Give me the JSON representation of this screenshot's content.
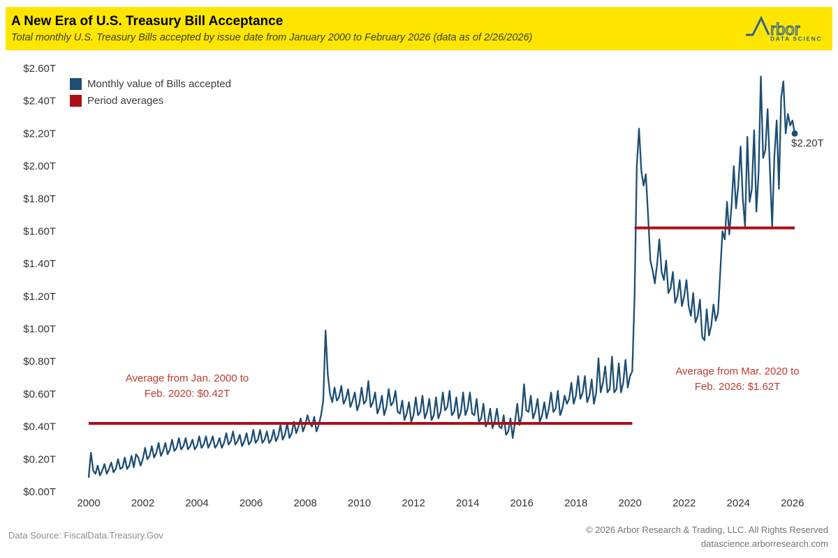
{
  "header": {
    "title": "A New Era of U.S. Treasury Bill Acceptance",
    "subtitle": "Total monthly U.S. Treasury Bills accepted by issue date from January 2000 to February 2026 (data as of 2/26/2026)",
    "background_color": "#FFE600",
    "logo": {
      "brand_suffix": "rbor",
      "tagline": "DATA SCIENCE",
      "color": "#33638F"
    }
  },
  "legend": {
    "items": [
      {
        "label": "Monthly value of Bills accepted",
        "color": "#1D4E74"
      },
      {
        "label": "Period averages",
        "color": "#AC1018"
      }
    ]
  },
  "annotations": {
    "left": {
      "line1": "Average from Jan. 2000 to",
      "line2": "Feb. 2020: $0.42T",
      "color": "#C0392B"
    },
    "right": {
      "line1": "Average from Mar. 2020 to",
      "line2": "Feb. 2026: $1.62T",
      "color": "#C0392B"
    },
    "end_point_label": "$2.20T"
  },
  "footer": {
    "source": "Data Source: FiscalData.Treasury.Gov",
    "copyright": "© 2026 Arbor Research & Trading, LLC. All Rights Reserved",
    "website": "datascience.arborresearch.com"
  },
  "chart_data": {
    "type": "line",
    "title": "A New Era of U.S. Treasury Bill Acceptance",
    "unit": "trillions of USD",
    "x_start": "2000-01",
    "x_end": "2026-02",
    "ylim": [
      0,
      2.6
    ],
    "grid": false,
    "legend_position": "top-left",
    "y_tick_labels": [
      "$0.00T",
      "$0.20T",
      "$0.40T",
      "$0.60T",
      "$0.80T",
      "$1.00T",
      "$1.20T",
      "$1.40T",
      "$1.60T",
      "$1.80T",
      "$2.00T",
      "$2.20T",
      "$2.40T",
      "$2.60T"
    ],
    "x_tick_labels": [
      "2000",
      "2002",
      "2004",
      "2006",
      "2008",
      "2010",
      "2012",
      "2014",
      "2016",
      "2018",
      "2020",
      "2022",
      "2024",
      "2026"
    ],
    "series": [
      {
        "name": "Monthly value of Bills accepted",
        "color": "#1D4E74",
        "monthly_values_trillions": [
          0.09,
          0.24,
          0.13,
          0.11,
          0.16,
          0.1,
          0.13,
          0.17,
          0.11,
          0.14,
          0.18,
          0.12,
          0.14,
          0.2,
          0.14,
          0.15,
          0.21,
          0.14,
          0.16,
          0.22,
          0.15,
          0.23,
          0.21,
          0.16,
          0.2,
          0.27,
          0.2,
          0.22,
          0.28,
          0.21,
          0.24,
          0.3,
          0.22,
          0.25,
          0.3,
          0.23,
          0.26,
          0.32,
          0.25,
          0.27,
          0.33,
          0.26,
          0.28,
          0.33,
          0.26,
          0.28,
          0.32,
          0.26,
          0.28,
          0.34,
          0.27,
          0.29,
          0.34,
          0.27,
          0.3,
          0.34,
          0.27,
          0.29,
          0.33,
          0.27,
          0.3,
          0.36,
          0.29,
          0.31,
          0.37,
          0.29,
          0.31,
          0.35,
          0.28,
          0.31,
          0.36,
          0.29,
          0.31,
          0.38,
          0.3,
          0.32,
          0.38,
          0.3,
          0.32,
          0.37,
          0.3,
          0.32,
          0.38,
          0.31,
          0.34,
          0.41,
          0.32,
          0.35,
          0.42,
          0.33,
          0.36,
          0.43,
          0.36,
          0.4,
          0.45,
          0.37,
          0.41,
          0.47,
          0.42,
          0.4,
          0.46,
          0.37,
          0.41,
          0.47,
          0.56,
          0.99,
          0.72,
          0.6,
          0.55,
          0.64,
          0.56,
          0.58,
          0.65,
          0.54,
          0.57,
          0.63,
          0.52,
          0.56,
          0.61,
          0.5,
          0.54,
          0.64,
          0.54,
          0.56,
          0.68,
          0.52,
          0.55,
          0.61,
          0.48,
          0.52,
          0.59,
          0.47,
          0.52,
          0.63,
          0.53,
          0.55,
          0.62,
          0.49,
          0.48,
          0.56,
          0.44,
          0.48,
          0.55,
          0.43,
          0.47,
          0.58,
          0.47,
          0.49,
          0.59,
          0.45,
          0.49,
          0.57,
          0.44,
          0.47,
          0.58,
          0.45,
          0.49,
          0.61,
          0.5,
          0.52,
          0.62,
          0.47,
          0.49,
          0.58,
          0.45,
          0.49,
          0.61,
          0.47,
          0.51,
          0.61,
          0.48,
          0.47,
          0.57,
          0.43,
          0.45,
          0.54,
          0.4,
          0.43,
          0.51,
          0.39,
          0.43,
          0.51,
          0.4,
          0.39,
          0.47,
          0.35,
          0.37,
          0.45,
          0.33,
          0.43,
          0.54,
          0.41,
          0.47,
          0.66,
          0.5,
          0.49,
          0.59,
          0.45,
          0.49,
          0.57,
          0.43,
          0.47,
          0.55,
          0.45,
          0.51,
          0.61,
          0.49,
          0.51,
          0.62,
          0.47,
          0.51,
          0.59,
          0.54,
          0.57,
          0.67,
          0.54,
          0.59,
          0.71,
          0.57,
          0.61,
          0.71,
          0.55,
          0.59,
          0.69,
          0.54,
          0.61,
          0.82,
          0.61,
          0.67,
          0.77,
          0.61,
          0.63,
          0.83,
          0.61,
          0.63,
          0.79,
          0.61,
          0.67,
          0.81,
          0.64,
          0.71,
          0.74,
          1.2,
          2.0,
          2.23,
          1.97,
          1.88,
          1.95,
          1.7,
          1.42,
          1.36,
          1.28,
          1.4,
          1.55,
          1.35,
          1.3,
          1.42,
          1.22,
          1.25,
          1.35,
          1.16,
          1.2,
          1.3,
          1.14,
          1.2,
          1.3,
          1.14,
          1.08,
          1.22,
          1.04,
          1.08,
          1.18,
          0.95,
          0.93,
          1.12,
          0.96,
          1.02,
          1.15,
          1.05,
          1.1,
          1.35,
          1.6,
          1.55,
          1.78,
          1.58,
          1.76,
          2.0,
          1.74,
          1.88,
          2.12,
          1.8,
          1.63,
          2.18,
          1.78,
          1.86,
          2.22,
          1.72,
          1.96,
          2.55,
          2.05,
          2.1,
          2.35,
          1.98,
          1.63,
          2.06,
          2.28,
          1.86,
          2.42,
          2.52,
          2.2,
          2.32,
          2.25,
          2.28,
          2.2
        ]
      },
      {
        "name": "Period averages",
        "color": "#AC1018",
        "segments": [
          {
            "from": "2000-01",
            "to": "2020-02",
            "value": 0.42
          },
          {
            "from": "2020-03",
            "to": "2026-02",
            "value": 1.62
          }
        ]
      }
    ]
  }
}
